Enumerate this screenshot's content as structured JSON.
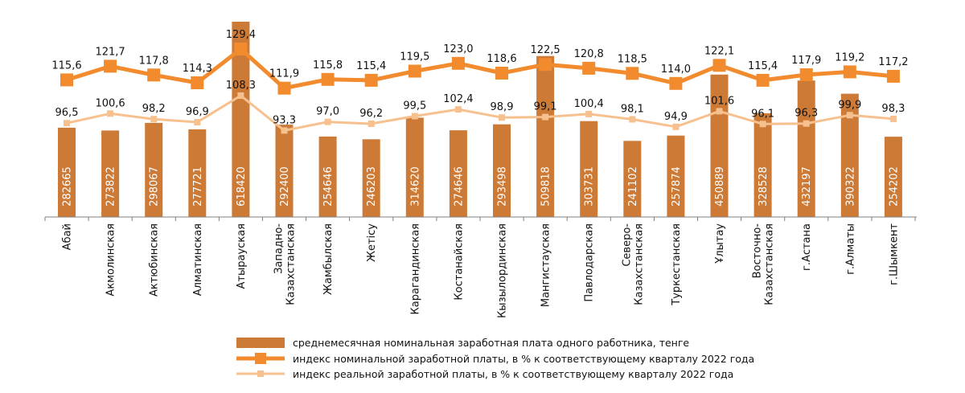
{
  "chart_data": {
    "type": "bar",
    "categories": [
      "Абай",
      "Акмолинская",
      "Актюбинская",
      "Алматинская",
      "Атырауская",
      "Западно-\nКазахстанская",
      "Жамбылская",
      "Жетісу",
      "Карагандинская",
      "Костанайская",
      "Кызылординская",
      "Мангистауская",
      "Павлодарская",
      "Северо-\nКазахстанская",
      "Туркестанская",
      "Ұлытау",
      "Восточно-\nКазахстанская",
      "г.Астана",
      "г.Алматы",
      "г.Шымкент"
    ],
    "series": [
      {
        "name": "среднемесячная номинальная заработная плата одного работника, тенге",
        "type": "bar",
        "values": [
          282665,
          273822,
          298067,
          277721,
          618420,
          292400,
          254646,
          246203,
          314620,
          274646,
          293498,
          509818,
          303731,
          241102,
          257874,
          450889,
          328528,
          432197,
          390322,
          254202
        ],
        "labels": [
          "282665",
          "273822",
          "298067",
          "277721",
          "618420",
          "292400",
          "254646",
          "246203",
          "314620",
          "274646",
          "293498",
          "509818",
          "303731",
          "241102",
          "257874",
          "450889",
          "328528",
          "432197",
          "390322",
          "254202"
        ],
        "color": "#cc7a36"
      },
      {
        "name": "индекс номинальной заработной платы, в % к соответствующему кварталу 2022 года",
        "type": "line",
        "values": [
          115.6,
          121.7,
          117.8,
          114.3,
          129.4,
          111.9,
          115.8,
          115.4,
          119.5,
          123.0,
          118.6,
          122.5,
          120.8,
          118.5,
          114.0,
          122.1,
          115.4,
          117.9,
          119.2,
          117.2
        ],
        "labels": [
          "115,6",
          "121,7",
          "117,8",
          "114,3",
          "129,4",
          "111,9",
          "115,8",
          "115,4",
          "119,5",
          "123,0",
          "118,6",
          "122,5",
          "120,8",
          "118,5",
          "114,0",
          "122,1",
          "115,4",
          "117,9",
          "119,2",
          "117,2"
        ],
        "color": "#f28a2e"
      },
      {
        "name": "индекс реальной заработной платы, в % к соответствующему кварталу 2022 года",
        "type": "line",
        "values": [
          96.5,
          100.6,
          98.2,
          96.9,
          108.3,
          93.3,
          97.0,
          96.2,
          99.5,
          102.4,
          98.9,
          99.1,
          100.4,
          98.1,
          94.9,
          101.6,
          96.1,
          96.3,
          99.9,
          98.3
        ],
        "labels": [
          "96,5",
          "100,6",
          "98,2",
          "96,9",
          "108,3",
          "93,3",
          "97,0",
          "96,2",
          "99,5",
          "102,4",
          "98,9",
          "99,1",
          "100,4",
          "98,1",
          "94,9",
          "101,6",
          "96,1",
          "96,3",
          "99,9",
          "98,3"
        ],
        "color": "#f7c08f"
      }
    ],
    "legend_position": "bottom",
    "grid": false
  }
}
